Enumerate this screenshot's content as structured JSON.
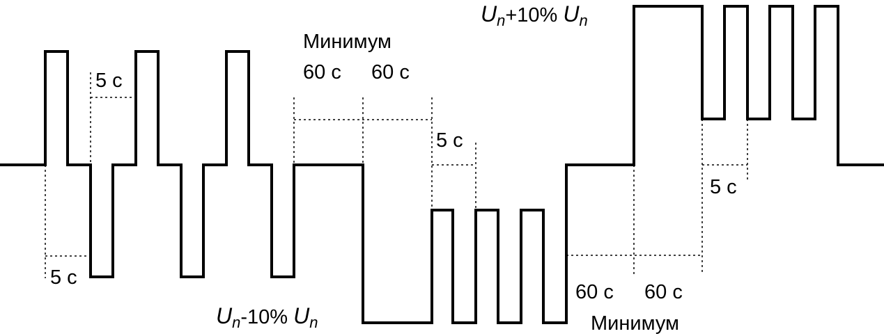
{
  "labels": {
    "t5s": "5 с",
    "t60s": "60 с",
    "minimum": "Минимум"
  },
  "upper_level": {
    "symbol": "U",
    "subscript": "n",
    "expression": "+10% ",
    "symbol2": "U",
    "subscript2": "n"
  },
  "lower_level": {
    "symbol": "U",
    "subscript": "n",
    "expression": "-10% ",
    "symbol2": "U",
    "subscript2": "n"
  }
}
